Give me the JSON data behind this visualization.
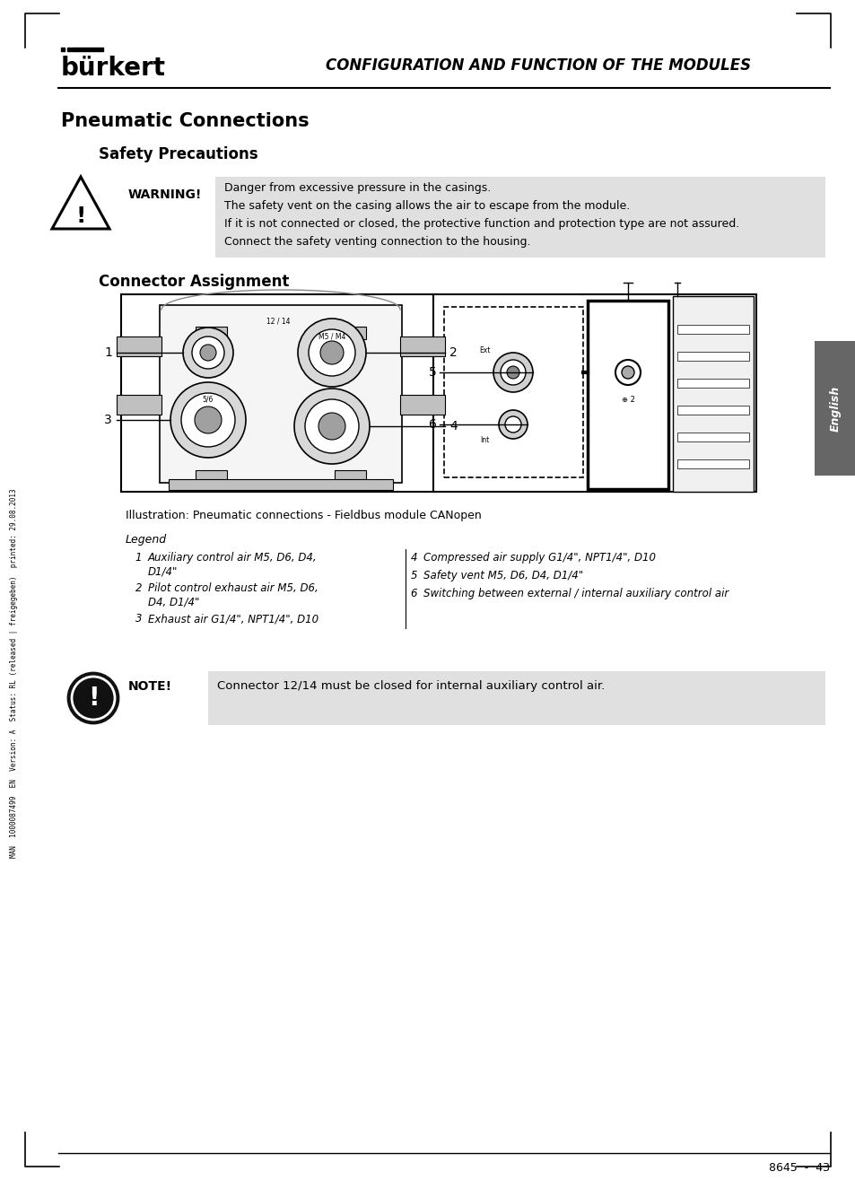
{
  "page_bg": "#ffffff",
  "header_title": "CONFIGURATION AND FUNCTION OF THE MODULES",
  "burkert_text": "bürkert",
  "section_title": "Pneumatic Connections",
  "subsection1": "Safety Precautions",
  "warning_label": "WARNING!",
  "warning_lines": [
    "Danger from excessive pressure in the casings.",
    "The safety vent on the casing allows the air to escape from the module.",
    "If it is not connected or closed, the protective function and protection type are not assured.",
    "Connect the safety venting connection to the housing."
  ],
  "subsection2": "Connector Assignment",
  "illustration_caption": "Illustration: Pneumatic connections - Fieldbus module CANopen",
  "legend_title": "Legend",
  "legend_left": [
    [
      "1",
      "Auxiliary control air M5, D6, D4,\nD1/4\""
    ],
    [
      "2",
      "Pilot control exhaust air M5, D6,\nD4, D1/4\""
    ],
    [
      "3",
      "Exhaust air G1/4\", NPT1/4\", D10"
    ]
  ],
  "legend_right": [
    [
      "4",
      "Compressed air supply G1/4\", NPT1/4\", D10"
    ],
    [
      "5",
      "Safety vent M5, D6, D4, D1/4\""
    ],
    [
      "6",
      "Switching between external / internal auxiliary control air"
    ]
  ],
  "note_label": "NOTE!",
  "note_text": "Connector 12/14 must be closed for internal auxiliary control air.",
  "footer_text": "8645  -  43",
  "side_text": "MAN  1000087499  EN  Version: A  Status: RL (released | freigegeben)  printed: 29.08.2013",
  "side_label": "English",
  "warning_bg": "#e0e0e0",
  "note_bg": "#e0e0e0"
}
